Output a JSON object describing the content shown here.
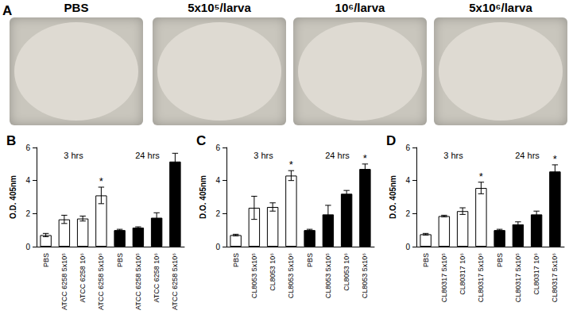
{
  "photos": {
    "title": "A",
    "labels": [
      "PBS",
      "5x10⁵/larva",
      "10⁶/larva",
      "5x10⁶/larva"
    ]
  },
  "chart_data": [
    {
      "type": "bar",
      "title": "B",
      "y_label": "O.D. 405nm",
      "categories": [
        "PBS",
        "ATCC 6258 5x10⁵",
        "ATCC 6258 10⁶",
        "ATCC 6258 5x10⁶",
        "PBS",
        "ATCC 6258 5x10⁵",
        "ATCC 6258 10⁶",
        "ATCC 6258 5x10⁶"
      ],
      "values": [
        0.7,
        1.65,
        1.7,
        3.1,
        1.0,
        1.15,
        1.75,
        5.15
      ],
      "errors": [
        0.1,
        0.25,
        0.15,
        0.5,
        0.05,
        0.05,
        0.3,
        0.5
      ],
      "colors": [
        "#ffffff",
        "#ffffff",
        "#ffffff",
        "#ffffff",
        "#000000",
        "#000000",
        "#000000",
        "#000000"
      ],
      "marks": [
        null,
        null,
        null,
        "*",
        null,
        null,
        null,
        "*"
      ],
      "annotations": [
        {
          "text": "3 hrs",
          "x": 1.5
        },
        {
          "text": "24 hrs",
          "x": 5.5
        }
      ],
      "ylim": [
        0,
        6
      ],
      "yticks": [
        0,
        2,
        4,
        6
      ],
      "grid": false
    },
    {
      "type": "bar",
      "title": "C",
      "y_label": "D.O. 405nm",
      "categories": [
        "PBS",
        "CL8053 5x10⁵",
        "CL8053 10⁶",
        "CL8053 5x10⁶",
        "PBS",
        "CL8053 5x10⁵",
        "CL8053 10⁶",
        "CL8053 5x10⁶"
      ],
      "values": [
        0.7,
        2.35,
        2.4,
        4.3,
        1.0,
        1.95,
        3.2,
        4.7
      ],
      "errors": [
        0.05,
        0.7,
        0.25,
        0.3,
        0.05,
        0.55,
        0.2,
        0.3
      ],
      "colors": [
        "#ffffff",
        "#ffffff",
        "#ffffff",
        "#ffffff",
        "#000000",
        "#000000",
        "#000000",
        "#000000"
      ],
      "marks": [
        null,
        null,
        null,
        "*",
        null,
        null,
        null,
        "*"
      ],
      "annotations": [
        {
          "text": "3 hrs",
          "x": 1.5
        },
        {
          "text": "24 hrs",
          "x": 5.5
        }
      ],
      "ylim": [
        0,
        6
      ],
      "yticks": [
        0,
        2,
        4,
        6
      ],
      "grid": false
    },
    {
      "type": "bar",
      "title": "D",
      "y_label": "D.O. 405nm",
      "categories": [
        "PBS",
        "CL80317 5x10⁵",
        "CL80317 10⁶",
        "CL80317 5x10⁶",
        "PBS",
        "CL80317 5x10⁵",
        "CL80317 10⁶",
        "CL80317 5x10⁶"
      ],
      "values": [
        0.75,
        1.85,
        2.15,
        3.55,
        1.0,
        1.35,
        1.95,
        4.55
      ],
      "errors": [
        0.05,
        0.05,
        0.2,
        0.35,
        0.05,
        0.15,
        0.2,
        0.4
      ],
      "colors": [
        "#ffffff",
        "#ffffff",
        "#ffffff",
        "#ffffff",
        "#000000",
        "#000000",
        "#000000",
        "#000000"
      ],
      "marks": [
        null,
        null,
        null,
        "*",
        null,
        null,
        null,
        "*"
      ],
      "annotations": [
        {
          "text": "3 hrs",
          "x": 1.5
        },
        {
          "text": "24 hrs",
          "x": 5.5
        }
      ],
      "ylim": [
        0,
        6
      ],
      "yticks": [
        0,
        2,
        4,
        6
      ],
      "grid": false
    }
  ]
}
